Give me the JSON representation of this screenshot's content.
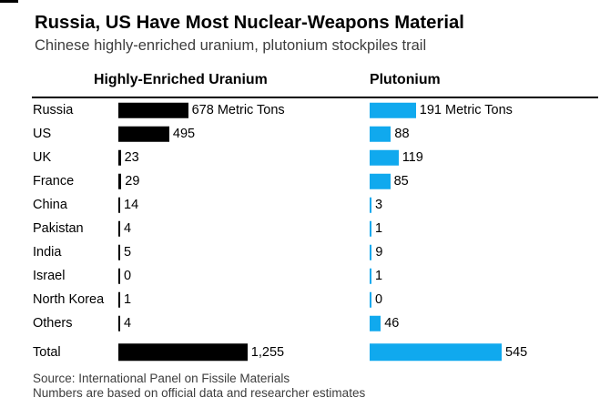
{
  "title": "Russia, US Have Most Nuclear-Weapons Material",
  "subtitle": "Chinese highly-enriched uranium, plutonium stockpiles trail",
  "source_line1": "Source: International Panel on Fissile Materials",
  "source_line2": "Numbers are based on official data and researcher estimates",
  "colors": {
    "heu_bar": "#000000",
    "pu_bar": "#10a9ee",
    "text_muted": "#3d3d3d"
  },
  "chart_data": {
    "type": "bar",
    "orientation": "horizontal",
    "unit": "Metric Tons",
    "categories": [
      "Russia",
      "US",
      "UK",
      "France",
      "China",
      "Pakistan",
      "India",
      "Israel",
      "North Korea",
      "Others",
      "Total"
    ],
    "series": [
      {
        "name": "Highly-Enriched Uranium",
        "values": [
          678,
          495,
          23,
          29,
          14,
          4,
          5,
          0,
          1,
          4,
          1255
        ],
        "labels": [
          "678 Metric Tons",
          "495",
          "23",
          "29",
          "14",
          "4",
          "5",
          "0",
          "1",
          "4",
          "1,255"
        ]
      },
      {
        "name": "Plutonium",
        "values": [
          191,
          88,
          119,
          85,
          3,
          1,
          9,
          1,
          0,
          46,
          545
        ],
        "labels": [
          "191 Metric Tons",
          "88",
          "119",
          "85",
          "3",
          "1",
          "9",
          "1",
          "0",
          "46",
          "545"
        ]
      }
    ]
  }
}
